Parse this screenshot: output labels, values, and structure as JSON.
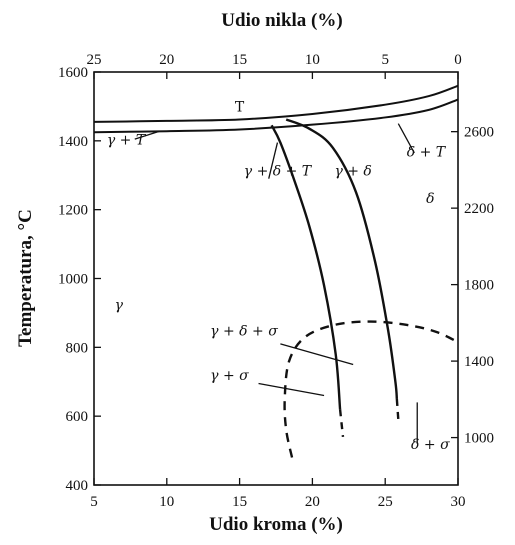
{
  "chart_data": {
    "type": "phase-diagram",
    "title": "",
    "xlabel": "Udio kroma (%)",
    "ylabel": "Temperatura, °C",
    "top_xlabel": "Udio nikla (%)",
    "xlim": [
      5,
      30
    ],
    "ylim": [
      400,
      1600
    ],
    "x_ticks": [
      "5",
      "10",
      "15",
      "20",
      "25",
      "30"
    ],
    "y_ticks": [
      "400",
      "600",
      "800",
      "1000",
      "1200",
      "1400",
      "1600"
    ],
    "top_ticks": [
      "25",
      "20",
      "15",
      "10",
      "5",
      "0"
    ],
    "right_ticks": [
      "1000",
      "1400",
      "1800",
      "2200",
      "2600"
    ],
    "phase_labels": [
      {
        "text": "T",
        "x": 15.0,
        "y": 1485
      },
      {
        "text": "γ + T",
        "x": 7.2,
        "y": 1390
      },
      {
        "text": "δ + T",
        "x": 27.8,
        "y": 1355
      },
      {
        "text": "γ + δ + T",
        "x": 17.6,
        "y": 1300
      },
      {
        "text": "γ + δ",
        "x": 22.8,
        "y": 1300
      },
      {
        "text": "δ",
        "x": 28.1,
        "y": 1220
      },
      {
        "text": "γ",
        "x": 6.7,
        "y": 910
      },
      {
        "text": "γ + δ + σ",
        "x": 15.3,
        "y": 835
      },
      {
        "text": "γ + σ",
        "x": 14.3,
        "y": 705
      },
      {
        "text": "δ + σ",
        "x": 28.1,
        "y": 505
      }
    ],
    "solidus_upper": [
      {
        "x": 5,
        "y": 1455
      },
      {
        "x": 10,
        "y": 1458
      },
      {
        "x": 15,
        "y": 1462
      },
      {
        "x": 20,
        "y": 1478
      },
      {
        "x": 25,
        "y": 1505
      },
      {
        "x": 28,
        "y": 1530
      },
      {
        "x": 30,
        "y": 1560
      }
    ],
    "solidus_lower": [
      {
        "x": 5,
        "y": 1425
      },
      {
        "x": 10,
        "y": 1428
      },
      {
        "x": 15,
        "y": 1433
      },
      {
        "x": 20,
        "y": 1447
      },
      {
        "x": 25,
        "y": 1468
      },
      {
        "x": 28,
        "y": 1490
      },
      {
        "x": 30,
        "y": 1520
      }
    ],
    "gamma_boundary": [
      {
        "x": 17.2,
        "y": 1445
      },
      {
        "x": 17.8,
        "y": 1395
      },
      {
        "x": 18.8,
        "y": 1280
      },
      {
        "x": 19.8,
        "y": 1150
      },
      {
        "x": 20.8,
        "y": 980
      },
      {
        "x": 21.6,
        "y": 780
      },
      {
        "x": 21.9,
        "y": 620
      }
    ],
    "delta_boundary": [
      {
        "x": 18.2,
        "y": 1462
      },
      {
        "x": 19.8,
        "y": 1435
      },
      {
        "x": 21.4,
        "y": 1380
      },
      {
        "x": 23.0,
        "y": 1250
      },
      {
        "x": 24.3,
        "y": 1050
      },
      {
        "x": 25.2,
        "y": 850
      },
      {
        "x": 25.7,
        "y": 700
      },
      {
        "x": 25.8,
        "y": 650
      }
    ],
    "sigma_boundary": [
      {
        "x": 18.6,
        "y": 480
      },
      {
        "x": 18.2,
        "y": 560
      },
      {
        "x": 18.1,
        "y": 650
      },
      {
        "x": 18.4,
        "y": 760
      },
      {
        "x": 19.5,
        "y": 830
      },
      {
        "x": 21.5,
        "y": 865
      },
      {
        "x": 24.0,
        "y": 875
      },
      {
        "x": 26.5,
        "y": 865
      },
      {
        "x": 28.5,
        "y": 845
      },
      {
        "x": 30.0,
        "y": 815
      }
    ],
    "gamma_dash_ext": [
      {
        "x": 21.9,
        "y": 620
      },
      {
        "x": 22.1,
        "y": 540
      }
    ],
    "delta_dash_ext": [
      {
        "x": 25.8,
        "y": 650
      },
      {
        "x": 25.9,
        "y": 590
      }
    ],
    "leaders": [
      [
        {
          "x": 17.0,
          "y": 1290
        },
        {
          "x": 17.6,
          "y": 1395
        }
      ],
      [
        {
          "x": 7.8,
          "y": 1405
        },
        {
          "x": 9.5,
          "y": 1428
        }
      ],
      [
        {
          "x": 27.0,
          "y": 1365
        },
        {
          "x": 25.9,
          "y": 1450
        }
      ],
      [
        {
          "x": 17.8,
          "y": 810
        },
        {
          "x": 22.8,
          "y": 750
        }
      ],
      [
        {
          "x": 16.3,
          "y": 695
        },
        {
          "x": 20.8,
          "y": 660
        }
      ],
      [
        {
          "x": 27.2,
          "y": 520
        },
        {
          "x": 27.2,
          "y": 640
        }
      ]
    ]
  }
}
